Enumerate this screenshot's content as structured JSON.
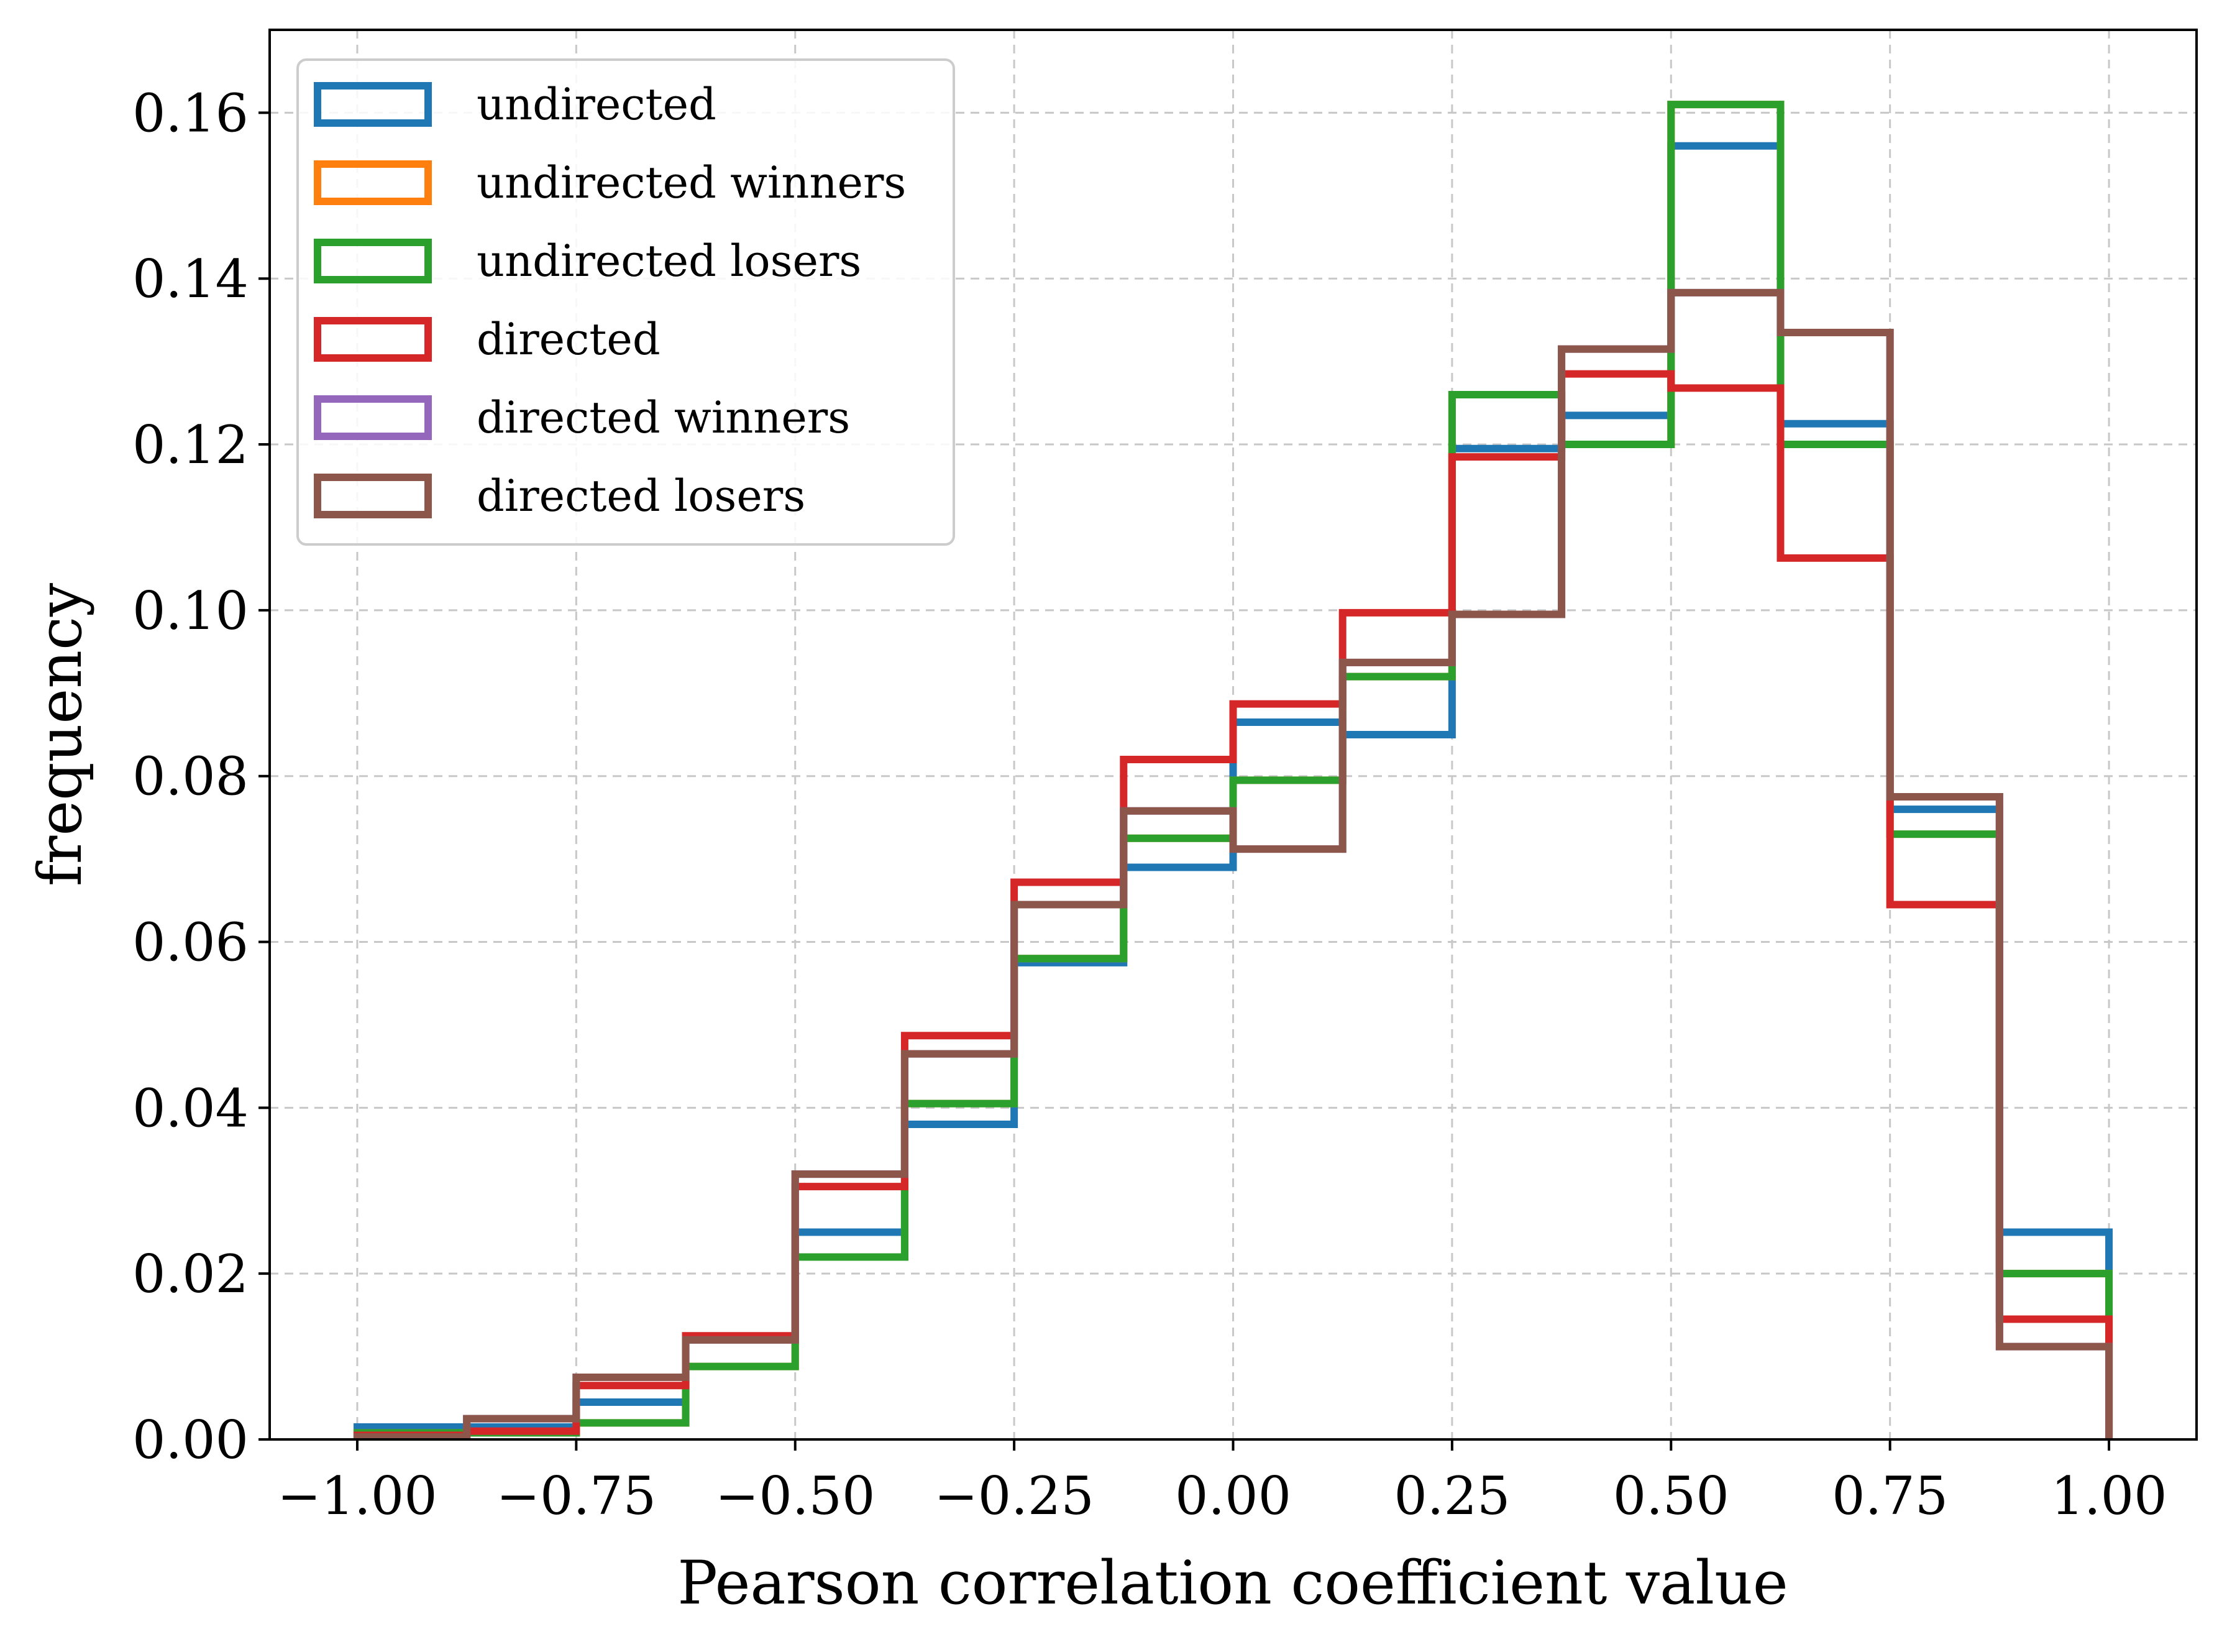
{
  "chart_data": {
    "type": "histogram-step",
    "title": "",
    "xlabel": "Pearson correlation coefficient value",
    "ylabel": "frequency",
    "xlim": [
      -1.1,
      1.1
    ],
    "ylim": [
      0.0,
      0.17
    ],
    "grid": true,
    "legend_position": "top-left",
    "x_ticks": [
      "−1.00",
      "−0.75",
      "−0.50",
      "−0.25",
      "0.00",
      "0.25",
      "0.50",
      "0.75",
      "1.00"
    ],
    "x_tick_values": [
      -1.0,
      -0.75,
      -0.5,
      -0.25,
      0.0,
      0.25,
      0.5,
      0.75,
      1.0
    ],
    "y_ticks": [
      "0.00",
      "0.02",
      "0.04",
      "0.06",
      "0.08",
      "0.10",
      "0.12",
      "0.14",
      "0.16"
    ],
    "y_tick_values": [
      0.0,
      0.02,
      0.04,
      0.06,
      0.08,
      0.1,
      0.12,
      0.14,
      0.16
    ],
    "bin_edges": [
      -1.0,
      -0.875,
      -0.75,
      -0.625,
      -0.5,
      -0.375,
      -0.25,
      -0.125,
      0.0,
      0.125,
      0.25,
      0.375,
      0.5,
      0.625,
      0.75,
      0.875,
      1.0
    ],
    "series": [
      {
        "name": "undirected",
        "color": "#1f77b4",
        "values": [
          0.0015,
          0.0015,
          0.0045,
          0.012,
          0.025,
          0.038,
          0.0575,
          0.069,
          0.0865,
          0.085,
          0.1195,
          0.1235,
          0.156,
          0.1225,
          0.076,
          0.025
        ]
      },
      {
        "name": "undirected winners",
        "color": "#ff7f0e",
        "values": [
          0.0008,
          0.0008,
          0.002,
          0.0088,
          0.022,
          0.0405,
          0.058,
          0.0725,
          0.0795,
          0.092,
          0.126,
          0.12,
          0.161,
          0.12,
          0.073,
          0.02
        ]
      },
      {
        "name": "undirected losers",
        "color": "#2ca02c",
        "values": [
          0.0008,
          0.0008,
          0.002,
          0.0088,
          0.022,
          0.0405,
          0.058,
          0.0725,
          0.0795,
          0.092,
          0.126,
          0.12,
          0.161,
          0.12,
          0.073,
          0.02
        ]
      },
      {
        "name": "directed",
        "color": "#d62728",
        "values": [
          0.0005,
          0.001,
          0.0065,
          0.0125,
          0.0305,
          0.0487,
          0.0672,
          0.082,
          0.0887,
          0.0997,
          0.1185,
          0.1285,
          0.1268,
          0.1063,
          0.0645,
          0.0145
        ]
      },
      {
        "name": "directed winners",
        "color": "#9467bd",
        "values": [
          0.0003,
          0.0025,
          0.0075,
          0.012,
          0.032,
          0.0465,
          0.0645,
          0.0758,
          0.0712,
          0.0937,
          0.0995,
          0.1315,
          0.1383,
          0.1335,
          0.0775,
          0.0112
        ]
      },
      {
        "name": "directed losers",
        "color": "#8c564b",
        "values": [
          0.0003,
          0.0025,
          0.0075,
          0.012,
          0.032,
          0.0465,
          0.0645,
          0.0758,
          0.0712,
          0.0937,
          0.0995,
          0.1315,
          0.1383,
          0.1335,
          0.0775,
          0.0112
        ]
      }
    ]
  }
}
